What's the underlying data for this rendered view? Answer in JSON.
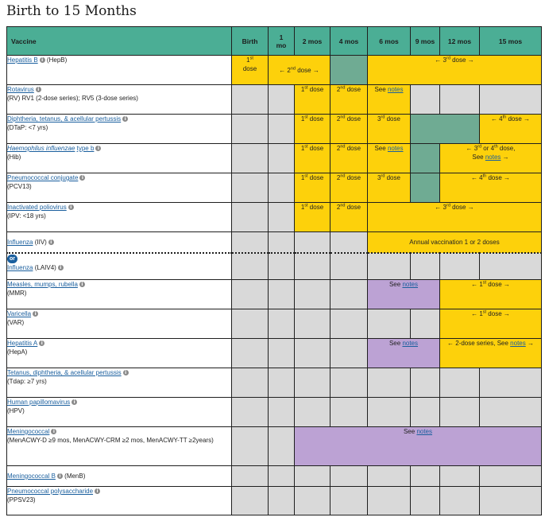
{
  "page_title": "Birth to 15 Months",
  "headers": {
    "vaccine": "Vaccine",
    "birth": "Birth",
    "m1_top": "1",
    "m1_bottom": "mo",
    "m2": "2 mos",
    "m4": "4 mos",
    "m6": "6 mos",
    "m9": "9 mos",
    "m12": "12 mos",
    "m15": "15 mos"
  },
  "vaccines": {
    "hepb": {
      "name": "Hepatitis B",
      "abbr": "(HepB)"
    },
    "rv": {
      "name": "Rotavirus",
      "detail": "(RV) RV1 (2-dose series); RV5 (3-dose series)"
    },
    "dtap": {
      "name": "Diphtheria, tetanus, & acellular pertussis",
      "detail": "(DTaP: <7 yrs)"
    },
    "hib": {
      "name": "Haemophilus influenzae",
      "name_suffix": "type b",
      "detail": "(Hib)"
    },
    "pcv": {
      "name": "Pneumococcal conjugate",
      "detail": "(PCV13)"
    },
    "ipv": {
      "name": "Inactivated poliovirus",
      "detail": "(IPV: <18 yrs)"
    },
    "iiv": {
      "name": "Influenza",
      "abbr": "(IIV)"
    },
    "or_label": "or",
    "laiv": {
      "name": "Influenza",
      "abbr": "(LAIV4)"
    },
    "mmr": {
      "name": "Measles, mumps, rubella",
      "detail": "(MMR)"
    },
    "var": {
      "name": "Varicella",
      "detail": "(VAR)"
    },
    "hepa": {
      "name": "Hepatitis A",
      "detail": "(HepA)"
    },
    "tdap": {
      "name": "Tetanus, diphtheria, & acellular pertussis",
      "detail": "(Tdap: ≥7 yrs)"
    },
    "hpv": {
      "name": "Human papillomavirus",
      "detail": "(HPV)"
    },
    "menacwy": {
      "name": "Meningococcal",
      "detail": "(MenACWY-D ≥9 mos, MenACWY-CRM ≥2 mos, MenACWY-TT ≥2years)"
    },
    "menb": {
      "name": "Meningococcal B",
      "abbr": "(MenB)"
    },
    "ppsv": {
      "name": "Pneumococcal polysaccharide",
      "detail": "(PPSV23)"
    }
  },
  "cells": {
    "first_num": "1",
    "first_sup": "st",
    "dose": "dose",
    "second_dose": "← 2",
    "second_num": "2",
    "second_sup": "nd",
    "third_num": "3",
    "third_sup": "rd",
    "fourth_num": "4",
    "fourth_sup": "th",
    "arrow_left": "←",
    "arrow_right": "→",
    "see": "See",
    "notes": "notes",
    "hib_span_a": "← 3",
    "hib_span_b": " or 4",
    "hib_span_c": " dose,",
    "flu_annual": "Annual vaccination 1 or 2 doses",
    "hepa_series": "← 2-dose series, See",
    "info_glyph": "i"
  },
  "colors": {
    "header_teal": "#4bae95",
    "recommended_yellow": "#fdd10b",
    "catchup_green": "#6fab93",
    "special_purple": "#bca2d4",
    "not_routine_gray": "#d9d9d9",
    "link_blue": "#1a5f9e"
  }
}
